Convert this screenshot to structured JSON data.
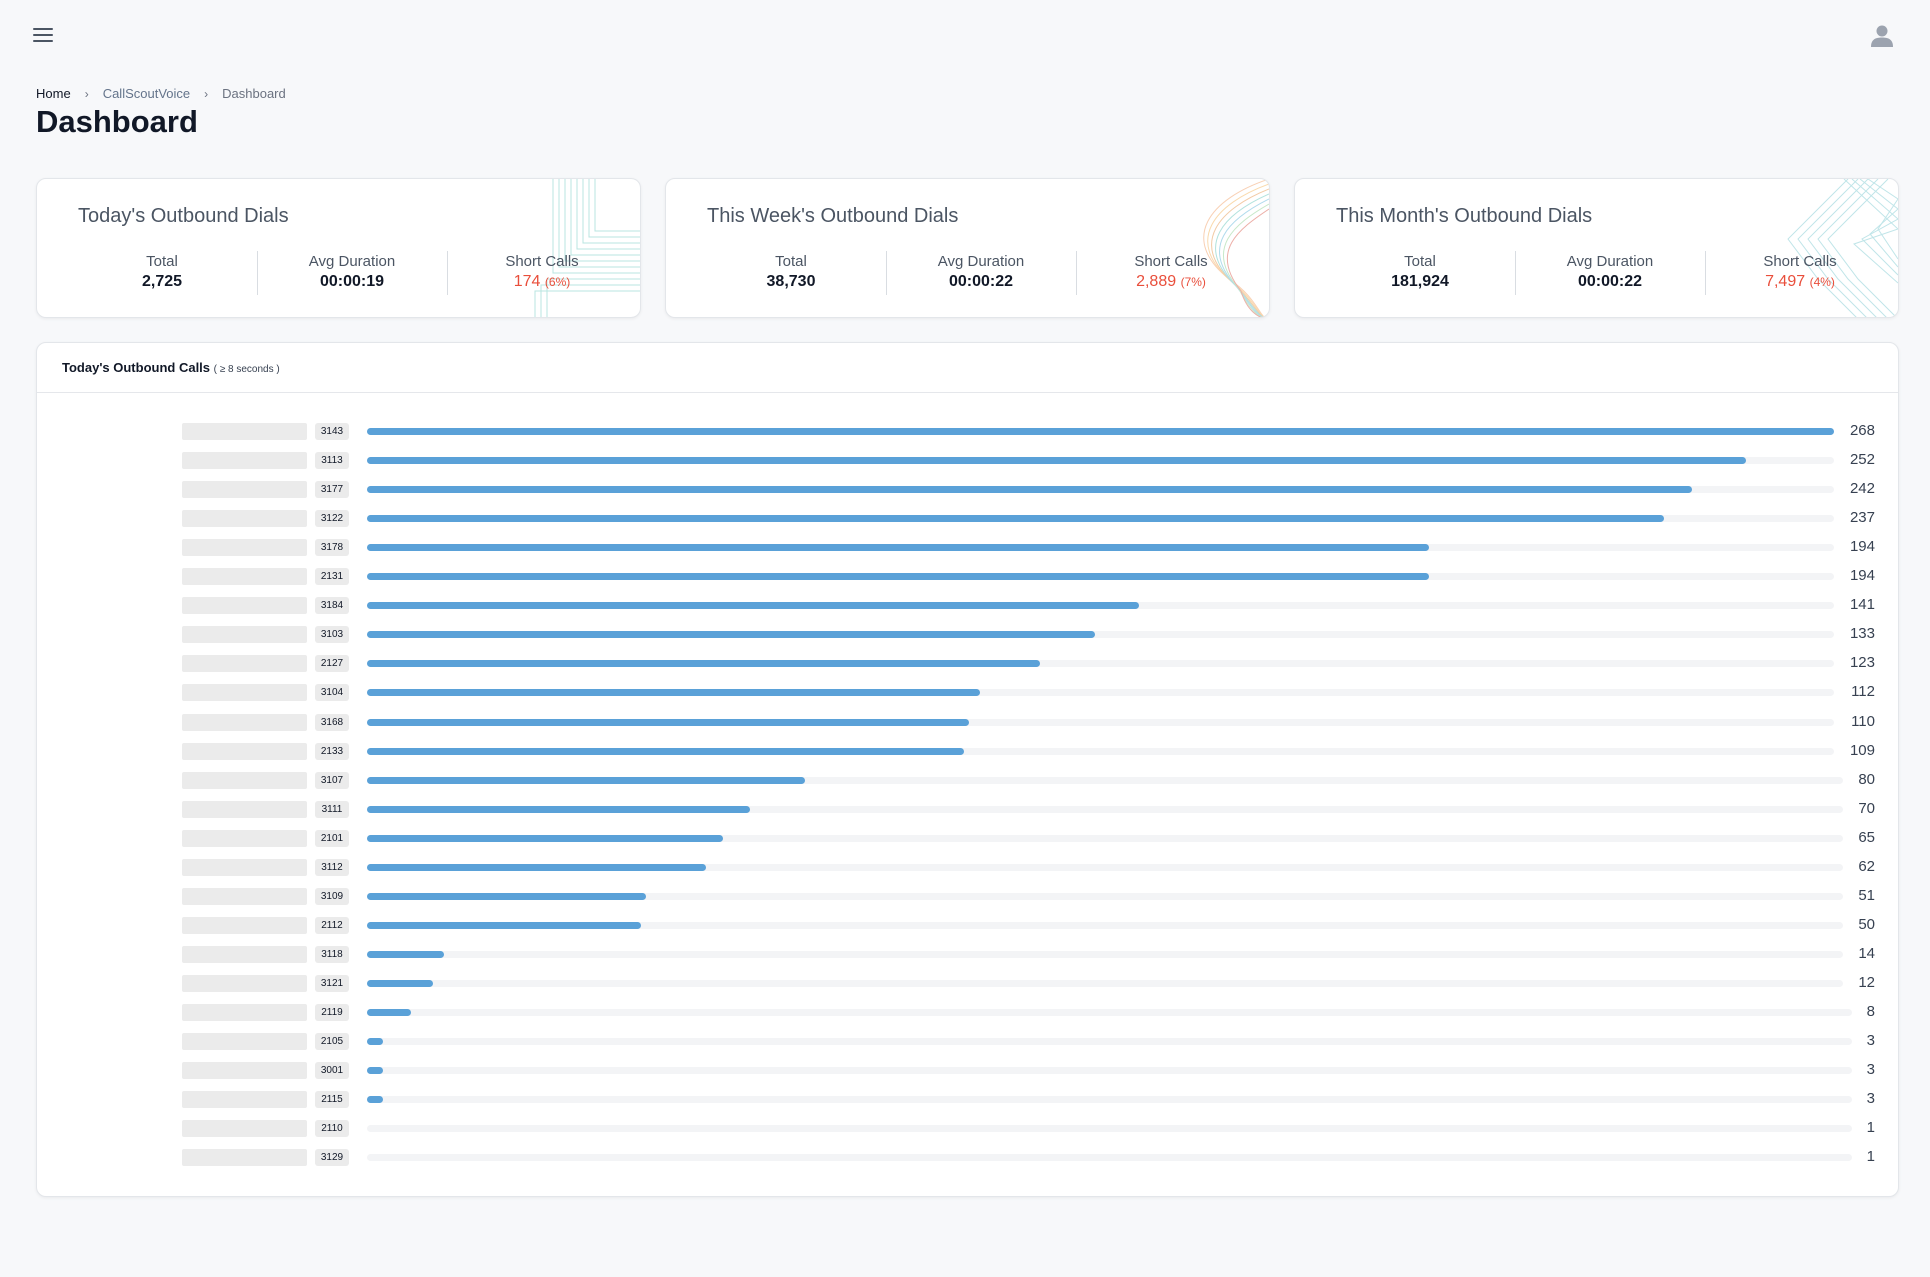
{
  "breadcrumb": {
    "home": "Home",
    "app": "CallScoutVoice",
    "current": "Dashboard"
  },
  "page_title": "Dashboard",
  "cards": [
    {
      "title": "Today's Outbound Dials",
      "total_label": "Total",
      "total": "2,725",
      "avg_label": "Avg Duration",
      "avg": "00:00:19",
      "short_label": "Short Calls",
      "short": "174",
      "short_pct": "(6%)"
    },
    {
      "title": "This Week's Outbound Dials",
      "total_label": "Total",
      "total": "38,730",
      "avg_label": "Avg Duration",
      "avg": "00:00:22",
      "short_label": "Short Calls",
      "short": "2,889",
      "short_pct": "(7%)"
    },
    {
      "title": "This Month's Outbound Dials",
      "total_label": "Total",
      "total": "181,924",
      "avg_label": "Avg Duration",
      "avg": "00:00:22",
      "short_label": "Short Calls",
      "short": "7,497",
      "short_pct": "(4%)"
    }
  ],
  "calls": {
    "title": "Today's Outbound Calls",
    "subtitle": "( ≥ 8 seconds )",
    "bar_color": "#5aa1d8",
    "chart_data": {
      "type": "bar",
      "categories": [
        "3143",
        "3113",
        "3177",
        "3122",
        "3178",
        "2131",
        "3184",
        "3103",
        "2127",
        "3104",
        "3168",
        "2133",
        "3107",
        "3111",
        "2101",
        "3112",
        "3109",
        "2112",
        "3118",
        "3121",
        "2119",
        "2105",
        "3001",
        "2115",
        "2110",
        "3129"
      ],
      "values": [
        268,
        252,
        242,
        237,
        194,
        194,
        141,
        133,
        123,
        112,
        110,
        109,
        80,
        70,
        65,
        62,
        51,
        50,
        14,
        12,
        8,
        3,
        3,
        3,
        1,
        1
      ]
    }
  }
}
